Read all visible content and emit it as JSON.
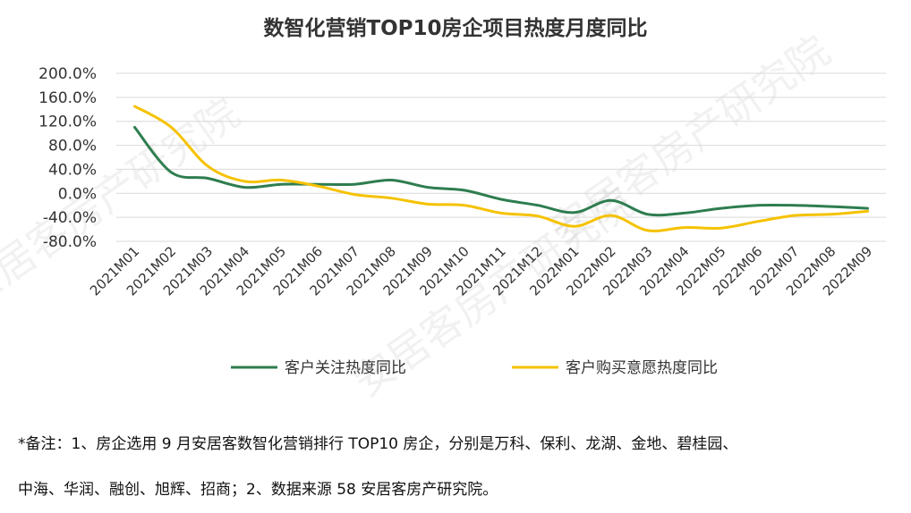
{
  "chart_data": {
    "type": "line",
    "title": "数智化营销TOP10房企项目热度月度同比",
    "categories": [
      "2021M01",
      "2021M02",
      "2021M03",
      "2021M04",
      "2021M05",
      "2021M06",
      "2021M07",
      "2021M08",
      "2021M09",
      "2021M10",
      "2021M11",
      "2021M12",
      "2022M01",
      "2022M02",
      "2022M03",
      "2022M04",
      "2022M05",
      "2022M06",
      "2022M07",
      "2022M08",
      "2022M09"
    ],
    "y_ticks": [
      "200.0%",
      "160.0%",
      "120.0%",
      "80.0%",
      "40.0%",
      "0.0%",
      "-40.0%",
      "-80.0%"
    ],
    "ylim": [
      -80,
      200
    ],
    "y_unit": "%",
    "grid": true,
    "legend_position": "bottom",
    "series": [
      {
        "name": "客户关注热度同比",
        "color": "#2E7D4F",
        "values": [
          110,
          35,
          25,
          10,
          15,
          15,
          15,
          22,
          10,
          5,
          -10,
          -20,
          -32,
          -12,
          -35,
          -33,
          -25,
          -20,
          -20,
          -22,
          -25
        ]
      },
      {
        "name": "客户购买意愿热度同比",
        "color": "#F5C200",
        "values": [
          145,
          110,
          45,
          20,
          22,
          12,
          -2,
          -8,
          -18,
          -20,
          -33,
          -38,
          -55,
          -37,
          -62,
          -57,
          -58,
          -47,
          -37,
          -35,
          -30
        ]
      }
    ]
  },
  "watermark": "安居客房产研究院",
  "footnote": {
    "line1": "*备注：1、房企选用 9 月安居客数智化营销排行 TOP10 房企，分别是万科、保利、龙湖、金地、碧桂园、",
    "line2": "中海、华润、融创、旭辉、招商；2、数据来源 58 安居客房产研究院。"
  }
}
